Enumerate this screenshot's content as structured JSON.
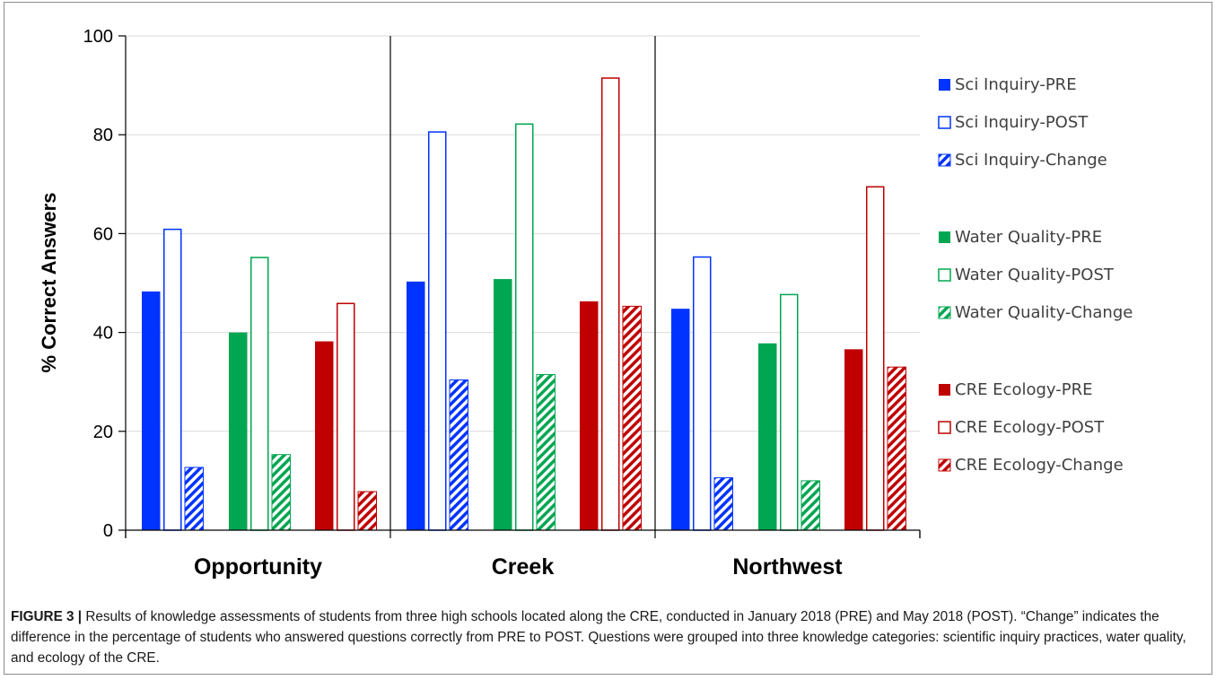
{
  "chart_data": {
    "type": "bar",
    "ylabel": "% Correct Answers",
    "xlabel": "",
    "ylim": [
      0,
      100
    ],
    "yticks": [
      0,
      20,
      40,
      60,
      80,
      100
    ],
    "grid": true,
    "legend_position": "right",
    "categories": [
      "Opportunity",
      "Creek",
      "Northwest"
    ],
    "series": [
      {
        "name": "Sci Inquiry-PRE",
        "values": [
          48.3,
          50.3,
          44.8
        ],
        "color": "#0033ff",
        "style": "solid"
      },
      {
        "name": "Sci Inquiry-POST",
        "values": [
          61.0,
          80.7,
          55.4
        ],
        "color": "#0033ff",
        "style": "outline"
      },
      {
        "name": "Sci Inquiry-Change",
        "values": [
          12.7,
          30.4,
          10.6
        ],
        "color": "#0033ff",
        "style": "hatched"
      },
      {
        "name": "Water Quality-PRE",
        "values": [
          40.0,
          50.8,
          37.8
        ],
        "color": "#00a651",
        "style": "solid"
      },
      {
        "name": "Water Quality-POST",
        "values": [
          55.3,
          82.3,
          47.8
        ],
        "color": "#00a651",
        "style": "outline"
      },
      {
        "name": "Water Quality-Change",
        "values": [
          15.3,
          31.5,
          10.0
        ],
        "color": "#00a651",
        "style": "hatched"
      },
      {
        "name": "CRE Ecology-PRE",
        "values": [
          38.2,
          46.3,
          36.6
        ],
        "color": "#c00000",
        "style": "solid"
      },
      {
        "name": "CRE Ecology-POST",
        "values": [
          46.0,
          91.6,
          69.6
        ],
        "color": "#c00000",
        "style": "outline"
      },
      {
        "name": "CRE Ecology-Change",
        "values": [
          7.8,
          45.3,
          33.0
        ],
        "color": "#c00000",
        "style": "hatched"
      }
    ]
  },
  "caption": {
    "label": "FIGURE 3 |",
    "text": "Results of knowledge assessments of students from three high schools located along the CRE, conducted in January 2018 (PRE) and May 2018 (POST). “Change” indicates the difference in the percentage of students who answered questions correctly from PRE to POST. Questions were grouped into three knowledge categories: scientific inquiry practices, water quality, and ecology of the CRE."
  }
}
